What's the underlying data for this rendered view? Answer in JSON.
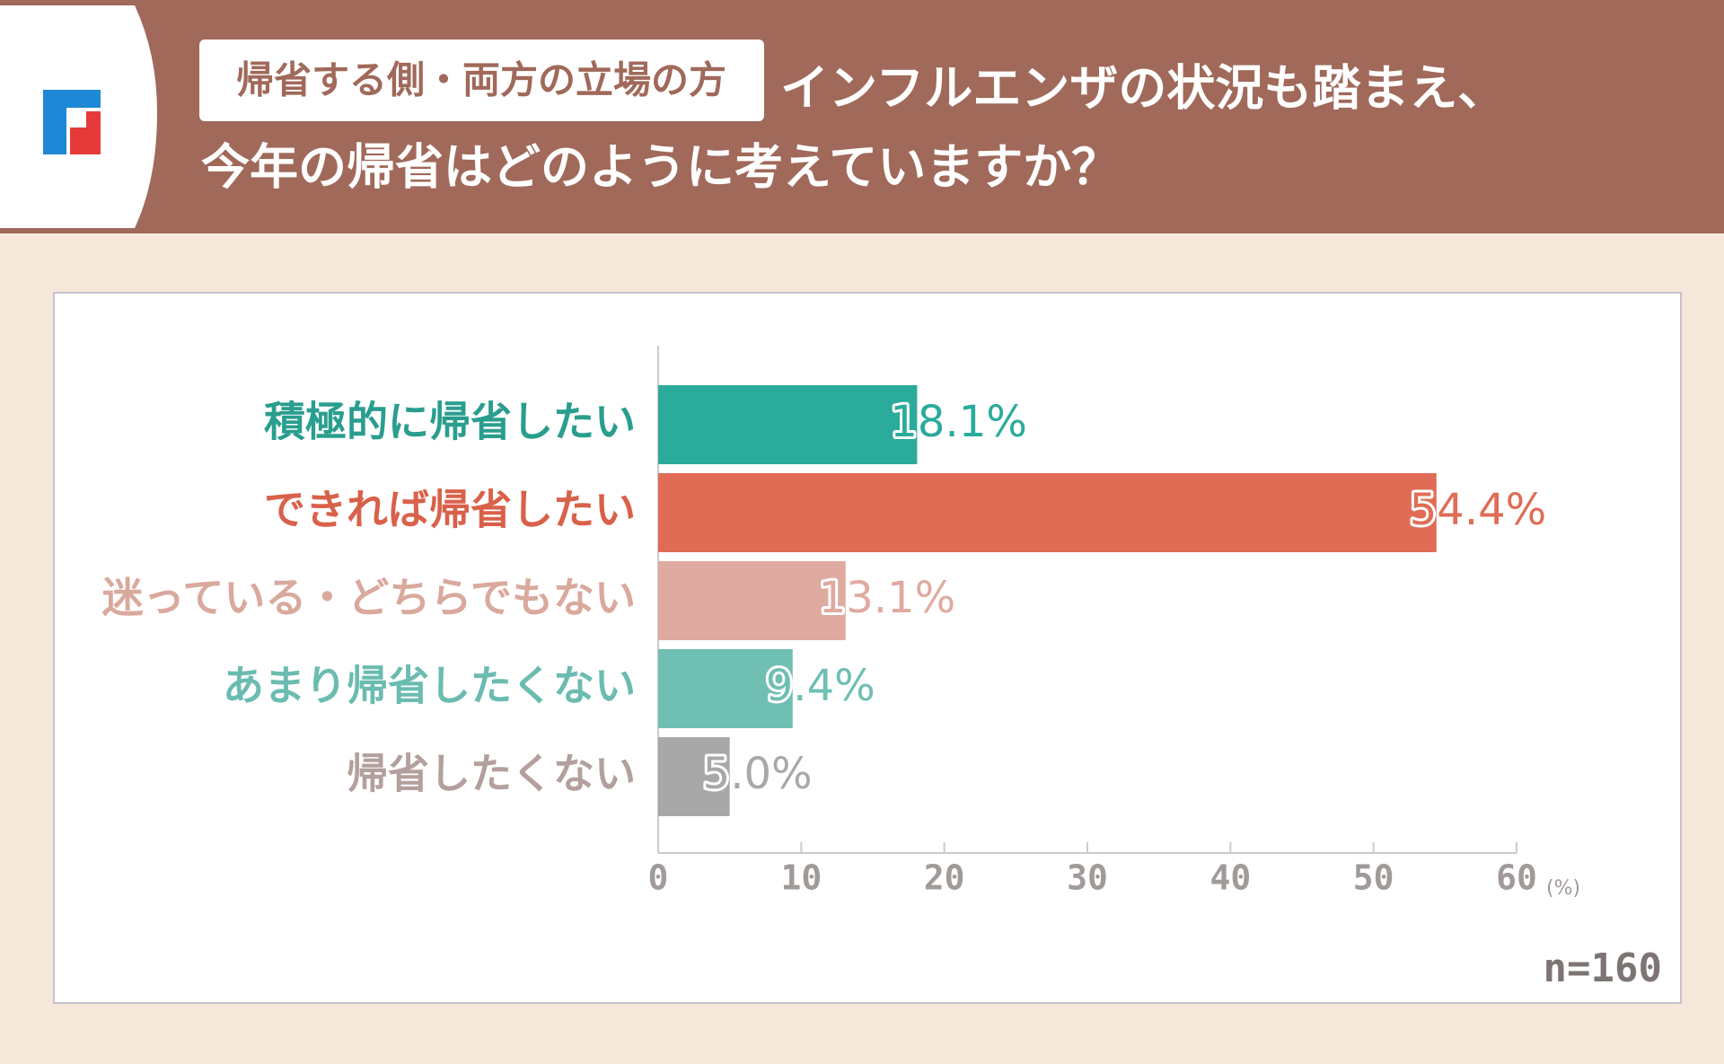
{
  "header": {
    "badge": "帰省する側・両方の立場の方",
    "title": [
      "インフルエンザの状況も踏まえ、",
      "今年の帰省はどのように考えていますか？"
    ]
  },
  "chart_data": {
    "type": "bar",
    "orientation": "horizontal",
    "categories": [
      "積極的に帰省したい",
      "できれば帰省したい",
      "迷っている・どちらでもない",
      "あまり帰省したくない",
      "帰省したくない"
    ],
    "values": [
      18.1,
      54.4,
      13.1,
      9.4,
      5.0
    ],
    "value_labels": [
      "18.1%",
      "54.4%",
      "13.1%",
      "9.4%",
      "5.0%"
    ],
    "colors": [
      "#2aab9b",
      "#e06c55",
      "#dfaaa0",
      "#6fbfb3",
      "#a8a8a8"
    ],
    "label_colors": [
      "#2a9e8e",
      "#d9614a",
      "#d9a99d",
      "#6bbcb0",
      "#b3a09c"
    ],
    "xlim": [
      0,
      60
    ],
    "xticks": [
      0,
      10,
      20,
      30,
      40,
      50,
      60
    ],
    "xlabel": "(%)",
    "note": "n=160"
  }
}
